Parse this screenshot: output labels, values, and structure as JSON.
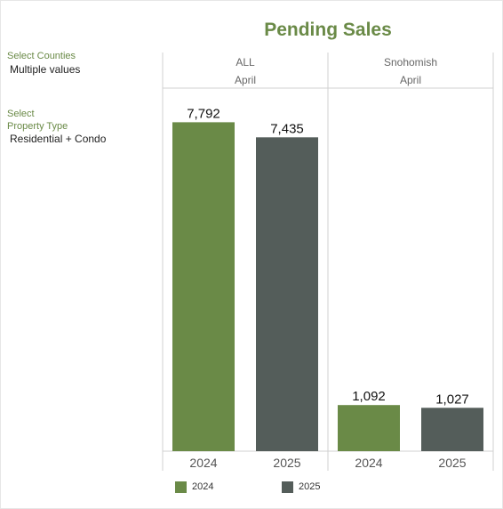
{
  "filters": {
    "counties_label": "Select Counties",
    "counties_value": "Multiple values",
    "property_label_line1": "Select",
    "property_label_line2": "Property Type",
    "property_value": "Residential + Condo"
  },
  "colors": {
    "y2024": "#6a8a47",
    "y2025": "#545d5a",
    "title": "#6a8a47"
  },
  "chart_data": {
    "type": "bar",
    "title": "Pending Sales",
    "panels": [
      {
        "county": "ALL",
        "month": "April",
        "categories": [
          "2024",
          "2025"
        ],
        "values": [
          7792,
          7435
        ],
        "labels": [
          "7,792",
          "7,435"
        ]
      },
      {
        "county": "Snohomish",
        "month": "April",
        "categories": [
          "2024",
          "2025"
        ],
        "values": [
          1092,
          1027
        ],
        "labels": [
          "1,092",
          "1,027"
        ]
      }
    ],
    "ylim": [
      0,
      7800
    ],
    "legend": [
      {
        "name": "2024"
      },
      {
        "name": "2025"
      }
    ],
    "legend_position": "bottom"
  }
}
